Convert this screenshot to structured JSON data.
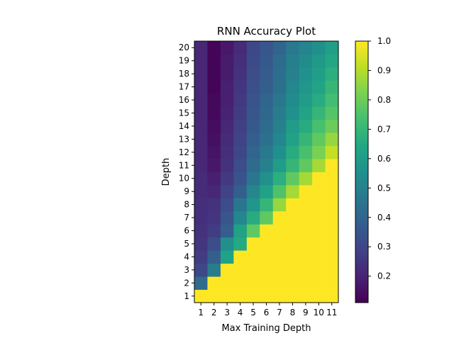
{
  "chart_data": {
    "type": "heatmap",
    "title": "RNN Accuracy Plot",
    "xlabel": "Max Training Depth",
    "ylabel": "Depth",
    "x": [
      "1",
      "2",
      "3",
      "4",
      "5",
      "6",
      "7",
      "8",
      "9",
      "10",
      "11"
    ],
    "y": [
      "1",
      "2",
      "3",
      "4",
      "5",
      "6",
      "7",
      "8",
      "9",
      "10",
      "11",
      "12",
      "13",
      "14",
      "15",
      "16",
      "17",
      "18",
      "19",
      "20"
    ],
    "colormap": "viridis",
    "vmin": 0.11,
    "vmax": 1.0,
    "colorbar_ticks": [
      "0.2",
      "0.3",
      "0.4",
      "0.5",
      "0.6",
      "0.7",
      "0.8",
      "0.9",
      "1.0"
    ],
    "values": [
      [
        1.0,
        1.0,
        1.0,
        1.0,
        1.0,
        1.0,
        1.0,
        1.0,
        1.0,
        1.0,
        1.0
      ],
      [
        0.42,
        1.0,
        1.0,
        1.0,
        1.0,
        1.0,
        1.0,
        1.0,
        1.0,
        1.0,
        1.0
      ],
      [
        0.3,
        0.48,
        1.0,
        1.0,
        1.0,
        1.0,
        1.0,
        1.0,
        1.0,
        1.0,
        1.0
      ],
      [
        0.27,
        0.38,
        0.62,
        1.0,
        1.0,
        1.0,
        1.0,
        1.0,
        1.0,
        1.0,
        1.0
      ],
      [
        0.25,
        0.32,
        0.55,
        0.65,
        1.0,
        1.0,
        1.0,
        1.0,
        1.0,
        1.0,
        1.0
      ],
      [
        0.24,
        0.27,
        0.38,
        0.62,
        0.78,
        1.0,
        1.0,
        1.0,
        1.0,
        1.0,
        1.0
      ],
      [
        0.23,
        0.25,
        0.35,
        0.52,
        0.66,
        0.78,
        1.0,
        1.0,
        1.0,
        1.0,
        1.0
      ],
      [
        0.23,
        0.24,
        0.32,
        0.46,
        0.58,
        0.7,
        0.86,
        1.0,
        1.0,
        1.0,
        1.0
      ],
      [
        0.22,
        0.21,
        0.29,
        0.38,
        0.52,
        0.62,
        0.75,
        0.88,
        1.0,
        1.0,
        1.0
      ],
      [
        0.22,
        0.19,
        0.26,
        0.34,
        0.46,
        0.56,
        0.67,
        0.78,
        0.88,
        1.0,
        1.0
      ],
      [
        0.21,
        0.17,
        0.24,
        0.32,
        0.42,
        0.5,
        0.6,
        0.7,
        0.78,
        0.88,
        1.0
      ],
      [
        0.21,
        0.16,
        0.23,
        0.3,
        0.4,
        0.47,
        0.55,
        0.66,
        0.74,
        0.82,
        0.92
      ],
      [
        0.21,
        0.15,
        0.22,
        0.29,
        0.38,
        0.44,
        0.52,
        0.62,
        0.7,
        0.78,
        0.86
      ],
      [
        0.21,
        0.14,
        0.21,
        0.28,
        0.36,
        0.42,
        0.5,
        0.6,
        0.66,
        0.74,
        0.8
      ],
      [
        0.21,
        0.13,
        0.2,
        0.27,
        0.35,
        0.41,
        0.48,
        0.56,
        0.63,
        0.7,
        0.76
      ],
      [
        0.21,
        0.13,
        0.19,
        0.26,
        0.34,
        0.4,
        0.46,
        0.54,
        0.6,
        0.66,
        0.73
      ],
      [
        0.21,
        0.12,
        0.19,
        0.25,
        0.33,
        0.38,
        0.44,
        0.52,
        0.58,
        0.63,
        0.7
      ],
      [
        0.21,
        0.12,
        0.18,
        0.24,
        0.32,
        0.37,
        0.43,
        0.5,
        0.56,
        0.61,
        0.67
      ],
      [
        0.21,
        0.12,
        0.18,
        0.23,
        0.31,
        0.36,
        0.42,
        0.49,
        0.54,
        0.59,
        0.64
      ],
      [
        0.21,
        0.12,
        0.17,
        0.22,
        0.3,
        0.35,
        0.4,
        0.47,
        0.51,
        0.55,
        0.61
      ]
    ]
  }
}
